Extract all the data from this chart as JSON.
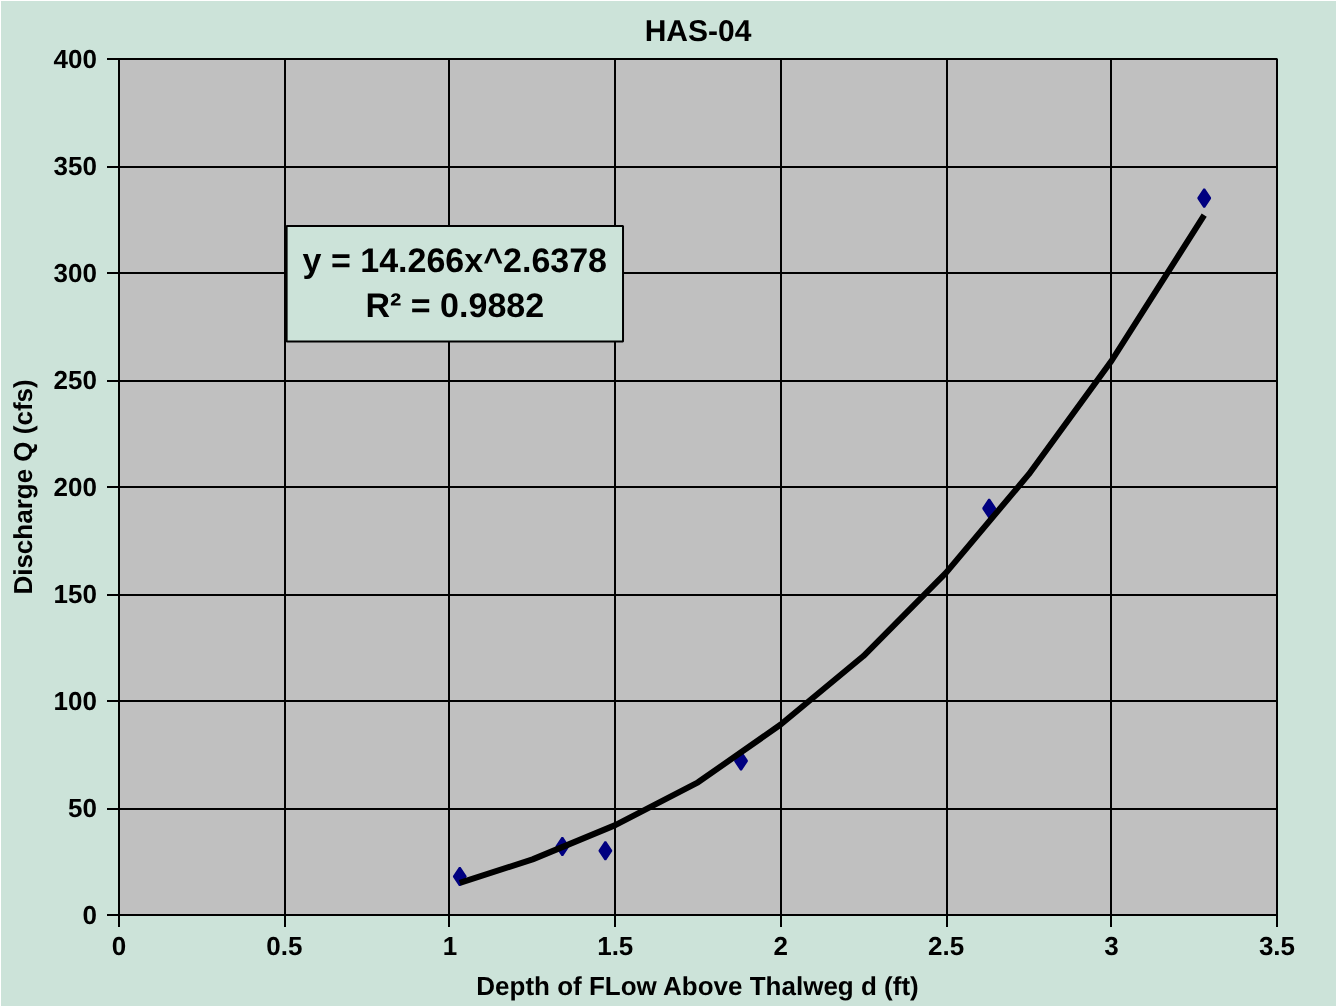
{
  "chart_data": {
    "type": "scatter",
    "title": "HAS-04",
    "xlabel": "Depth of FLow Above Thalweg d (ft)",
    "ylabel": "Discharge Q (cfs)",
    "xlim": [
      0,
      3.5
    ],
    "ylim": [
      0,
      400
    ],
    "xticks": [
      0,
      0.5,
      1,
      1.5,
      2,
      2.5,
      3,
      3.5
    ],
    "yticks": [
      0,
      50,
      100,
      150,
      200,
      250,
      300,
      350,
      400
    ],
    "grid": true,
    "marker": "diamond",
    "series": [
      {
        "color": "#000080",
        "x": [
          1.03,
          1.34,
          1.47,
          1.88,
          2.63,
          3.28
        ],
        "values": [
          18,
          32,
          30,
          72,
          190,
          335
        ]
      },
      {
        "type": "line",
        "color": "#000000",
        "line_style": "solid",
        "marker": "none",
        "x": [
          1.03,
          1.25,
          1.5,
          1.75,
          2.0,
          2.25,
          2.5,
          2.75,
          3.0,
          3.28
        ],
        "values": [
          15,
          26,
          42,
          62,
          89,
          121,
          160,
          206,
          259,
          327
        ]
      }
    ],
    "annotations": [
      "y = 14.266x^2.6378",
      "R² = 0.9882"
    ]
  }
}
